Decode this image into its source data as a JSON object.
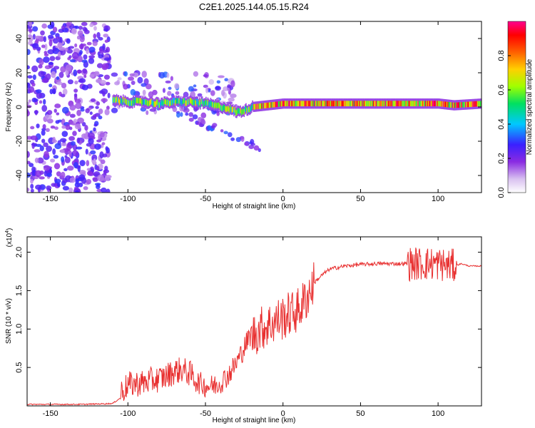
{
  "title": "C2E1.2025.144.05.15.R24",
  "chart_data": [
    {
      "type": "heatmap",
      "title": "C2E1.2025.144.05.15.R24",
      "xlabel": "Height of straight line (km)",
      "ylabel": "Frequency (Hz)",
      "xlim": [
        -165,
        128
      ],
      "ylim": [
        -50,
        50
      ],
      "x_ticks": [
        -150,
        -100,
        -50,
        0,
        50,
        100
      ],
      "y_ticks": [
        -40,
        -20,
        0,
        20,
        40
      ],
      "colorbar": {
        "label": "Normalized spectral amplitude",
        "range": [
          0,
          1
        ],
        "ticks": [
          "0.0",
          "0.2",
          "0.4",
          "0.6",
          "0.8"
        ],
        "colormap": [
          "#ffffff",
          "#d8c0f0",
          "#8a2be2",
          "#3a20ff",
          "#00c8ff",
          "#00e060",
          "#a0ff00",
          "#ffd000",
          "#ff6000",
          "#ff0000",
          "#ff0090"
        ]
      },
      "ridge": {
        "x": [
          -110,
          -100,
          -90,
          -80,
          -70,
          -60,
          -50,
          -40,
          -35,
          -30,
          -25,
          -20,
          -10,
          0,
          10,
          20,
          40,
          60,
          80,
          100,
          110,
          128
        ],
        "frequency": [
          4,
          3,
          3,
          2,
          3,
          3,
          2,
          0,
          -1,
          -3,
          -2,
          0,
          1,
          2,
          2,
          2,
          2,
          2,
          2,
          2,
          1,
          2
        ]
      }
    },
    {
      "type": "line",
      "xlabel": "Height of straight line (km)",
      "ylabel": "SNR (10 * v/v)",
      "y_exponent_label": "(x10",
      "y_exponent_power": "4",
      "y_exponent_close": ")",
      "xlim": [
        -165,
        128
      ],
      "ylim": [
        0,
        22000
      ],
      "x_ticks": [
        -150,
        -100,
        -50,
        0,
        50,
        100
      ],
      "y_ticks": [
        "0.5",
        "1.0",
        "1.5",
        "2.0"
      ],
      "y_tick_values": [
        5000,
        10000,
        15000,
        20000
      ],
      "line_color": "#e83030",
      "series": [
        {
          "x": [
            -165,
            -150,
            -130,
            -110,
            -105,
            -100,
            -95,
            -90,
            -85,
            -80,
            -75,
            -70,
            -65,
            -60,
            -55,
            -50,
            -45,
            -40,
            -35,
            -30,
            -25,
            -20,
            -15,
            -10,
            -5,
            0,
            5,
            10,
            15,
            20,
            25,
            30,
            40,
            50,
            60,
            70,
            80,
            85,
            90,
            95,
            100,
            105,
            110,
            115,
            120,
            128
          ],
          "y": [
            200,
            200,
            200,
            300,
            1000,
            2000,
            2200,
            2300,
            2600,
            2800,
            3200,
            3800,
            4000,
            3500,
            2500,
            2000,
            2000,
            2500,
            3500,
            5000,
            7000,
            9000,
            10000,
            10500,
            11000,
            11500,
            12000,
            12500,
            14000,
            16000,
            17000,
            17800,
            18200,
            18400,
            18500,
            18500,
            18500,
            18500,
            18500,
            18500,
            18500,
            18300,
            18200,
            18500,
            18200,
            18200
          ]
        }
      ]
    }
  ]
}
